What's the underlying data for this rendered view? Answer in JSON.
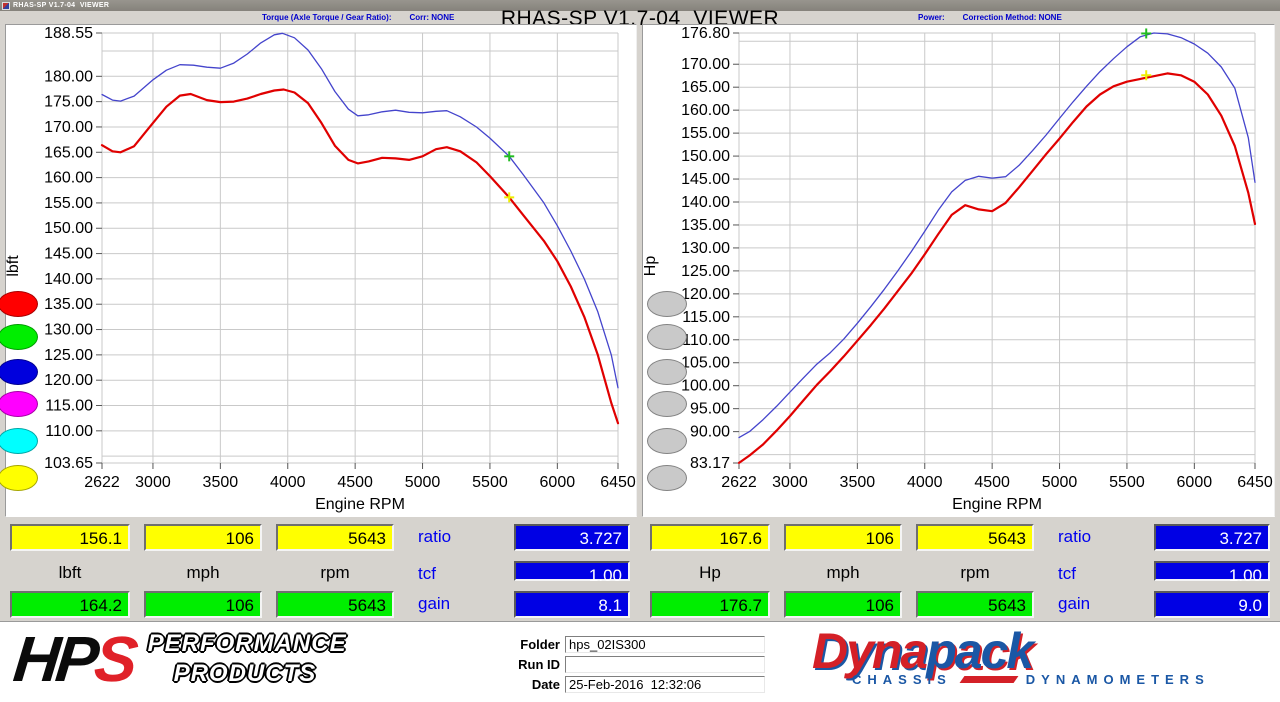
{
  "window": {
    "title": "RHAS-SP V1.7-04  VIEWER"
  },
  "main_title": "RHAS-SP V1.7-04  VIEWER",
  "panel_headers": {
    "left_label": "Torque (Axle Torque / Gear Ratio):",
    "left_corr": "Corr: NONE",
    "right_label": "Power:",
    "right_corr": "Correction Method: NONE"
  },
  "run_buttons": {
    "left_colors": [
      "#ff0000",
      "#00ee00",
      "#0000dd",
      "#ff00ff",
      "#00ffff",
      "#ffff00"
    ],
    "right_colors": [
      "#c9c9c9",
      "#c9c9c9",
      "#c9c9c9",
      "#c9c9c9",
      "#c9c9c9",
      "#c9c9c9"
    ]
  },
  "chart_data": [
    {
      "type": "line",
      "title": "Torque (Axle Torque / Gear Ratio): Corr: NONE",
      "xlabel": "Engine RPM",
      "ylabel": "lbft",
      "xlim": [
        2622,
        6450
      ],
      "ylim": [
        103.65,
        188.55
      ],
      "x_ticks": [
        2622,
        3000,
        3500,
        4000,
        4500,
        5000,
        5500,
        6000,
        6450
      ],
      "y_ticks": [
        188.55,
        180,
        175,
        170,
        165,
        160,
        155,
        150,
        145,
        140,
        135,
        130,
        125,
        120,
        115,
        110,
        103.65
      ],
      "grid": true,
      "legend_position": "none",
      "series": [
        {
          "name": "run-blue-torque",
          "color": "#4444cc",
          "width": 1.3,
          "points": [
            [
              2622,
              176.4
            ],
            [
              2700,
              175.3
            ],
            [
              2760,
              175.1
            ],
            [
              2860,
              176.1
            ],
            [
              3000,
              179.3
            ],
            [
              3100,
              181.2
            ],
            [
              3200,
              182.3
            ],
            [
              3300,
              182.2
            ],
            [
              3400,
              181.8
            ],
            [
              3500,
              181.6
            ],
            [
              3600,
              182.6
            ],
            [
              3700,
              184.4
            ],
            [
              3800,
              186.6
            ],
            [
              3900,
              188.2
            ],
            [
              3960,
              188.5
            ],
            [
              4050,
              187.6
            ],
            [
              4150,
              185.2
            ],
            [
              4250,
              181.5
            ],
            [
              4350,
              177.0
            ],
            [
              4450,
              173.5
            ],
            [
              4520,
              172.2
            ],
            [
              4600,
              172.4
            ],
            [
              4700,
              173.0
            ],
            [
              4800,
              173.3
            ],
            [
              4900,
              172.9
            ],
            [
              5000,
              172.8
            ],
            [
              5100,
              173.1
            ],
            [
              5180,
              173.2
            ],
            [
              5280,
              172.0
            ],
            [
              5400,
              170.0
            ],
            [
              5500,
              167.8
            ],
            [
              5643,
              164.2
            ],
            [
              5750,
              160.5
            ],
            [
              5900,
              155.0
            ],
            [
              6000,
              150.5
            ],
            [
              6100,
              145.5
            ],
            [
              6200,
              140.0
            ],
            [
              6300,
              133.5
            ],
            [
              6400,
              125.0
            ],
            [
              6450,
              118.5
            ]
          ]
        },
        {
          "name": "run-red-torque",
          "color": "#e00000",
          "width": 2.2,
          "points": [
            [
              2622,
              166.4
            ],
            [
              2700,
              165.2
            ],
            [
              2760,
              165.0
            ],
            [
              2860,
              166.2
            ],
            [
              3000,
              170.8
            ],
            [
              3100,
              174.0
            ],
            [
              3200,
              176.2
            ],
            [
              3280,
              176.5
            ],
            [
              3400,
              175.3
            ],
            [
              3500,
              174.9
            ],
            [
              3600,
              175.0
            ],
            [
              3700,
              175.6
            ],
            [
              3800,
              176.5
            ],
            [
              3900,
              177.2
            ],
            [
              3970,
              177.4
            ],
            [
              4050,
              176.8
            ],
            [
              4150,
              174.7
            ],
            [
              4250,
              170.8
            ],
            [
              4350,
              166.3
            ],
            [
              4450,
              163.5
            ],
            [
              4520,
              162.8
            ],
            [
              4600,
              163.2
            ],
            [
              4700,
              163.9
            ],
            [
              4800,
              163.8
            ],
            [
              4900,
              163.5
            ],
            [
              5000,
              164.2
            ],
            [
              5100,
              165.6
            ],
            [
              5180,
              166.0
            ],
            [
              5280,
              165.2
            ],
            [
              5400,
              163.0
            ],
            [
              5500,
              160.3
            ],
            [
              5643,
              156.1
            ],
            [
              5750,
              152.5
            ],
            [
              5900,
              147.5
            ],
            [
              6000,
              143.5
            ],
            [
              6100,
              138.5
            ],
            [
              6200,
              132.5
            ],
            [
              6300,
              125.0
            ],
            [
              6400,
              115.5
            ],
            [
              6450,
              111.5
            ]
          ]
        }
      ],
      "markers": [
        {
          "x": 5643,
          "y": 164.2,
          "color": "#22bb22"
        },
        {
          "x": 5643,
          "y": 156.1,
          "color": "#eeee00"
        }
      ]
    },
    {
      "type": "line",
      "title": "Power: Correction Method: NONE",
      "xlabel": "Engine RPM",
      "ylabel": "Hp",
      "xlim": [
        2622,
        6450
      ],
      "ylim": [
        83.17,
        176.8
      ],
      "x_ticks": [
        2622,
        3000,
        3500,
        4000,
        4500,
        5000,
        5500,
        6000,
        6450
      ],
      "y_ticks": [
        176.8,
        170,
        165,
        160,
        155,
        150,
        145,
        140,
        135,
        130,
        125,
        120,
        115,
        110,
        105,
        100,
        95,
        90,
        83.17
      ],
      "grid": true,
      "legend_position": "none",
      "series": [
        {
          "name": "run-blue-power",
          "color": "#4444cc",
          "width": 1.3,
          "points": [
            [
              2622,
              88.7
            ],
            [
              2700,
              90.0
            ],
            [
              2800,
              92.6
            ],
            [
              2900,
              95.5
            ],
            [
              3000,
              98.6
            ],
            [
              3100,
              101.7
            ],
            [
              3200,
              104.7
            ],
            [
              3300,
              107.2
            ],
            [
              3400,
              110.2
            ],
            [
              3500,
              113.6
            ],
            [
              3600,
              117.2
            ],
            [
              3700,
              121.0
            ],
            [
              3800,
              125.0
            ],
            [
              3900,
              129.2
            ],
            [
              4000,
              133.6
            ],
            [
              4100,
              138.2
            ],
            [
              4200,
              142.2
            ],
            [
              4300,
              144.7
            ],
            [
              4400,
              145.6
            ],
            [
              4500,
              145.2
            ],
            [
              4600,
              145.5
            ],
            [
              4700,
              148.0
            ],
            [
              4800,
              151.2
            ],
            [
              4900,
              154.6
            ],
            [
              5000,
              158.2
            ],
            [
              5100,
              161.8
            ],
            [
              5200,
              165.2
            ],
            [
              5300,
              168.4
            ],
            [
              5400,
              171.2
            ],
            [
              5500,
              173.8
            ],
            [
              5600,
              176.0
            ],
            [
              5700,
              176.8
            ],
            [
              5800,
              176.6
            ],
            [
              5900,
              175.8
            ],
            [
              6000,
              174.4
            ],
            [
              6100,
              172.4
            ],
            [
              6200,
              169.4
            ],
            [
              6300,
              164.8
            ],
            [
              6400,
              154.0
            ],
            [
              6450,
              144.3
            ]
          ]
        },
        {
          "name": "run-red-power",
          "color": "#e00000",
          "width": 2.2,
          "points": [
            [
              2622,
              83.2
            ],
            [
              2700,
              84.8
            ],
            [
              2800,
              87.2
            ],
            [
              2900,
              90.2
            ],
            [
              3000,
              93.4
            ],
            [
              3100,
              96.8
            ],
            [
              3200,
              100.2
            ],
            [
              3300,
              103.2
            ],
            [
              3400,
              106.4
            ],
            [
              3500,
              109.8
            ],
            [
              3600,
              113.2
            ],
            [
              3700,
              116.8
            ],
            [
              3800,
              120.6
            ],
            [
              3900,
              124.4
            ],
            [
              4000,
              128.6
            ],
            [
              4100,
              133.0
            ],
            [
              4200,
              137.2
            ],
            [
              4300,
              139.3
            ],
            [
              4400,
              138.4
            ],
            [
              4500,
              138.0
            ],
            [
              4600,
              139.8
            ],
            [
              4700,
              143.2
            ],
            [
              4800,
              146.8
            ],
            [
              4900,
              150.4
            ],
            [
              5000,
              153.8
            ],
            [
              5100,
              157.4
            ],
            [
              5200,
              160.8
            ],
            [
              5300,
              163.4
            ],
            [
              5400,
              165.2
            ],
            [
              5500,
              166.2
            ],
            [
              5600,
              166.8
            ],
            [
              5700,
              167.4
            ],
            [
              5800,
              168.0
            ],
            [
              5900,
              167.6
            ],
            [
              6000,
              166.2
            ],
            [
              6100,
              163.4
            ],
            [
              6200,
              158.8
            ],
            [
              6300,
              152.2
            ],
            [
              6400,
              142.0
            ],
            [
              6450,
              135.2
            ]
          ]
        }
      ],
      "markers": [
        {
          "x": 5643,
          "y": 176.7,
          "color": "#22bb22"
        },
        {
          "x": 5643,
          "y": 167.6,
          "color": "#eeee00"
        }
      ]
    }
  ],
  "tables": [
    {
      "cells_top": [
        "156.1",
        "106",
        "5643"
      ],
      "units": [
        "lbft",
        "mph",
        "rpm"
      ],
      "cells_bottom": [
        "164.2",
        "106",
        "5643"
      ],
      "stats": [
        {
          "label": "ratio",
          "value": "3.727"
        },
        {
          "label": "tcf",
          "value": "1.00"
        },
        {
          "label": "gain",
          "value": "8.1"
        }
      ]
    },
    {
      "cells_top": [
        "167.6",
        "106",
        "5643"
      ],
      "units": [
        "Hp",
        "mph",
        "rpm"
      ],
      "cells_bottom": [
        "176.7",
        "106",
        "5643"
      ],
      "stats": [
        {
          "label": "ratio",
          "value": "3.727"
        },
        {
          "label": "tcf",
          "value": "1.00"
        },
        {
          "label": "gain",
          "value": "9.0"
        }
      ]
    }
  ],
  "footer": {
    "form": {
      "folder_label": "Folder",
      "folder_value": "hps_02IS300",
      "runid_label": "Run ID",
      "runid_value": "",
      "date_label": "Date",
      "date_value": "25-Feb-2016  12:32:06"
    },
    "hps": {
      "part1": "HP",
      "part2": "S",
      "line1": "PERFORMANCE",
      "line2": "PRODUCTS"
    },
    "dynapack": {
      "word1": "Dyna",
      "word2": "pack",
      "sub1": "CHASSIS",
      "sub2": "DYNAMOMETERS"
    }
  }
}
